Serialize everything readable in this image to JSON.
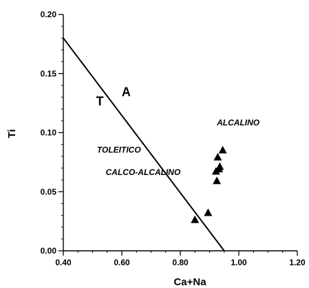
{
  "chart_data": {
    "type": "scatter",
    "title": "",
    "xlabel": "Ca+Na",
    "ylabel": "Ti",
    "xlim": [
      0.4,
      1.2
    ],
    "ylim": [
      0.0,
      0.2
    ],
    "x_ticks": [
      "0.40",
      "0.60",
      "0.80",
      "1.00",
      "1.20"
    ],
    "y_ticks": [
      "0.00",
      "0.05",
      "0.10",
      "0.15",
      "0.20"
    ],
    "x_tick_values": [
      0.4,
      0.6,
      0.8,
      1.0,
      1.2
    ],
    "y_tick_values": [
      0.0,
      0.05,
      0.1,
      0.15,
      0.2
    ],
    "x_minor_step": 0.05,
    "y_minor_step": 0.01,
    "grid": false,
    "marker": "filled-triangle",
    "colors": {
      "ink": "#000000",
      "background": "#ffffff"
    },
    "points": [
      {
        "x": 0.85,
        "y": 0.026
      },
      {
        "x": 0.895,
        "y": 0.032
      },
      {
        "x": 0.925,
        "y": 0.059
      },
      {
        "x": 0.922,
        "y": 0.067
      },
      {
        "x": 0.932,
        "y": 0.069
      },
      {
        "x": 0.935,
        "y": 0.071
      },
      {
        "x": 0.928,
        "y": 0.079
      },
      {
        "x": 0.945,
        "y": 0.085
      }
    ],
    "divider_line": {
      "x": [
        0.4,
        0.95
      ],
      "y": [
        0.18,
        0.0
      ]
    },
    "annotations": [
      {
        "text": "T",
        "x": 0.525,
        "y": 0.123,
        "style": "big"
      },
      {
        "text": "A",
        "x": 0.615,
        "y": 0.131,
        "style": "big"
      },
      {
        "text": "ALCALINO",
        "x": 0.925,
        "y": 0.106,
        "style": "region"
      },
      {
        "text": "TOLEITICO",
        "x": 0.515,
        "y": 0.083,
        "style": "region"
      },
      {
        "text": "CALCO-ALCALINO",
        "x": 0.545,
        "y": 0.064,
        "style": "region"
      }
    ]
  }
}
